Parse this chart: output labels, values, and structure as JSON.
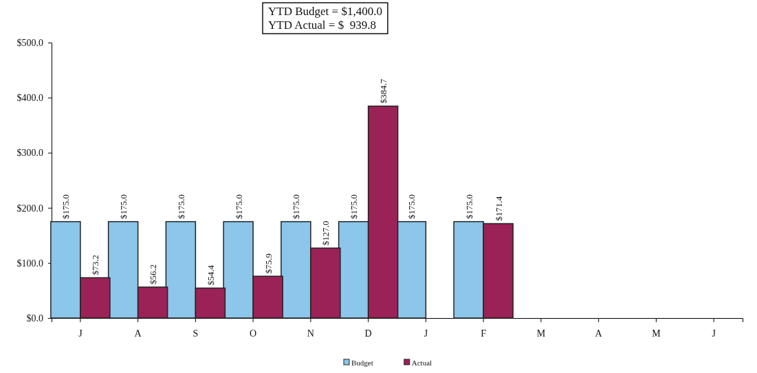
{
  "chart_data": {
    "type": "bar",
    "categories": [
      "J",
      "A",
      "S",
      "O",
      "N",
      "D",
      "J",
      "F",
      "M",
      "A",
      "M",
      "J"
    ],
    "series": [
      {
        "name": "Budget",
        "color": "#8cc6ea",
        "values": [
          175.0,
          175.0,
          175.0,
          175.0,
          175.0,
          175.0,
          175.0,
          175.0,
          null,
          null,
          null,
          null
        ],
        "value_labels": [
          "$175.0",
          "$175.0",
          "$175.0",
          "$175.0",
          "$175.0",
          "$175.0",
          "$175.0",
          "$175.0",
          null,
          null,
          null,
          null
        ]
      },
      {
        "name": "Actual",
        "color": "#9b2257",
        "values": [
          73.2,
          56.2,
          54.4,
          75.9,
          127.0,
          384.7,
          null,
          171.4,
          null,
          null,
          null,
          null
        ],
        "value_labels": [
          "$73.2",
          "$56.2",
          "$54.4",
          "$75.9",
          "$127.0",
          "$384.7",
          null,
          "$171.4",
          null,
          null,
          null,
          null
        ]
      }
    ],
    "ylim": [
      0,
      500
    ],
    "yticks": [
      {
        "value": 0,
        "label": "$0.0"
      },
      {
        "value": 100,
        "label": "$100.0"
      },
      {
        "value": 200,
        "label": "$200.0"
      },
      {
        "value": 300,
        "label": "$300.0"
      },
      {
        "value": 400,
        "label": "$400.0"
      },
      {
        "value": 500,
        "label": "$500.0"
      }
    ],
    "grid": false,
    "legend": "bottom",
    "annotations": [
      "YTD Budget = $1,400.0",
      "YTD Actual = $  939.8"
    ]
  }
}
